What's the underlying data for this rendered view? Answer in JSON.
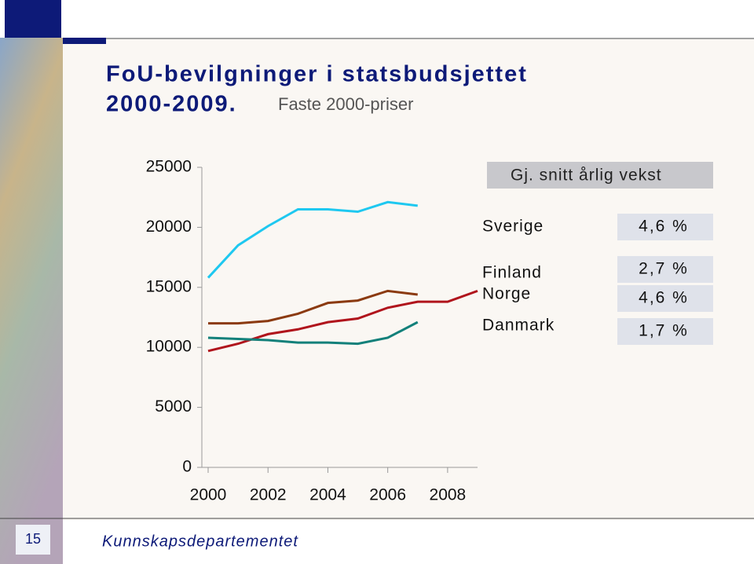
{
  "chart_data": {
    "type": "line",
    "title": "FoU-bevilgninger i statsbudsjettet",
    "title_years": "2000-2009.",
    "subtitle": "Faste 2000-priser",
    "x": [
      2000,
      2001,
      2002,
      2003,
      2004,
      2005,
      2006,
      2007,
      2008,
      2009
    ],
    "xlim": [
      2000,
      2009
    ],
    "xticks": [
      2000,
      2002,
      2004,
      2006,
      2008
    ],
    "ylim": [
      0,
      25000
    ],
    "yticks": [
      0,
      5000,
      10000,
      15000,
      20000,
      25000
    ],
    "grid": false,
    "legend_header": "Gj. snitt årlig vekst",
    "series": [
      {
        "name": "Sverige",
        "color": "#1ec8f0",
        "growth_label": "4,6 %",
        "values": [
          15800,
          18500,
          20100,
          21500,
          21500,
          21300,
          22100,
          21800,
          null,
          null
        ]
      },
      {
        "name": "Finland",
        "color": "#8b3a10",
        "growth_label": "2,7 %",
        "values": [
          12000,
          12000,
          12200,
          12800,
          13700,
          13900,
          14700,
          14400,
          null,
          null
        ]
      },
      {
        "name": "Norge",
        "color": "#b0141c",
        "growth_label": "4,6 %",
        "values": [
          9700,
          10300,
          11100,
          11500,
          12100,
          12400,
          13300,
          13800,
          13800,
          14700
        ]
      },
      {
        "name": "Danmark",
        "color": "#12807a",
        "growth_label": "1,7 %",
        "values": [
          10800,
          10700,
          10600,
          10400,
          10400,
          10300,
          10800,
          12100,
          null,
          null
        ]
      }
    ]
  },
  "footer": "Kunnskapsdepartementet",
  "page_number": "15"
}
